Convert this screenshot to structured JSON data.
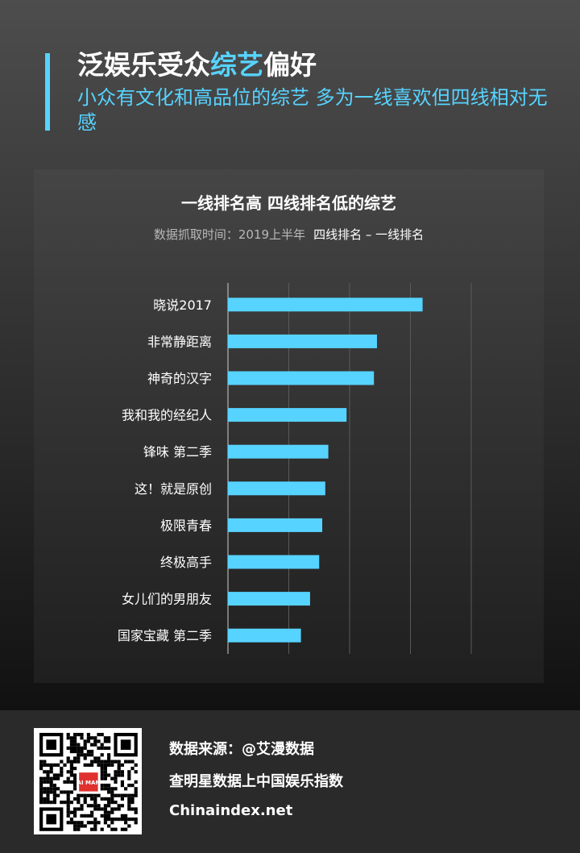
{
  "header": {
    "title_main": "泛娱乐受众",
    "title_highlight": "综艺",
    "title_tail": "偏好",
    "subtitle": "小众有文化和高品位的综艺 多为一线喜欢但四线相对无感"
  },
  "colors": {
    "accent": "#57d3ff",
    "bar": "#57d3ff"
  },
  "chart_data": {
    "type": "bar",
    "orientation": "horizontal",
    "title": "一线排名高 四线排名低的综艺",
    "subtitle": "数据抓取时间：2019上半年",
    "legend": "四线排名 – 一线排名",
    "categories": [
      "晓说2017",
      "非常静距离",
      "神奇的汉字",
      "我和我的经纪人",
      "锋味 第二季",
      "这！就是原创",
      "极限青春",
      "终极高手",
      "女儿们的男朋友",
      "国家宝藏 第二季"
    ],
    "values": [
      320,
      245,
      240,
      195,
      165,
      160,
      155,
      150,
      135,
      120
    ],
    "xlim": [
      0,
      400
    ],
    "grid": true,
    "show_x_ticks": false
  },
  "footer": {
    "qr_logo_text": "AI MAN",
    "source": "数据来源：@艾漫数据",
    "tagline": "查明星数据上中国娱乐指数",
    "site": "Chinaindex.net"
  }
}
